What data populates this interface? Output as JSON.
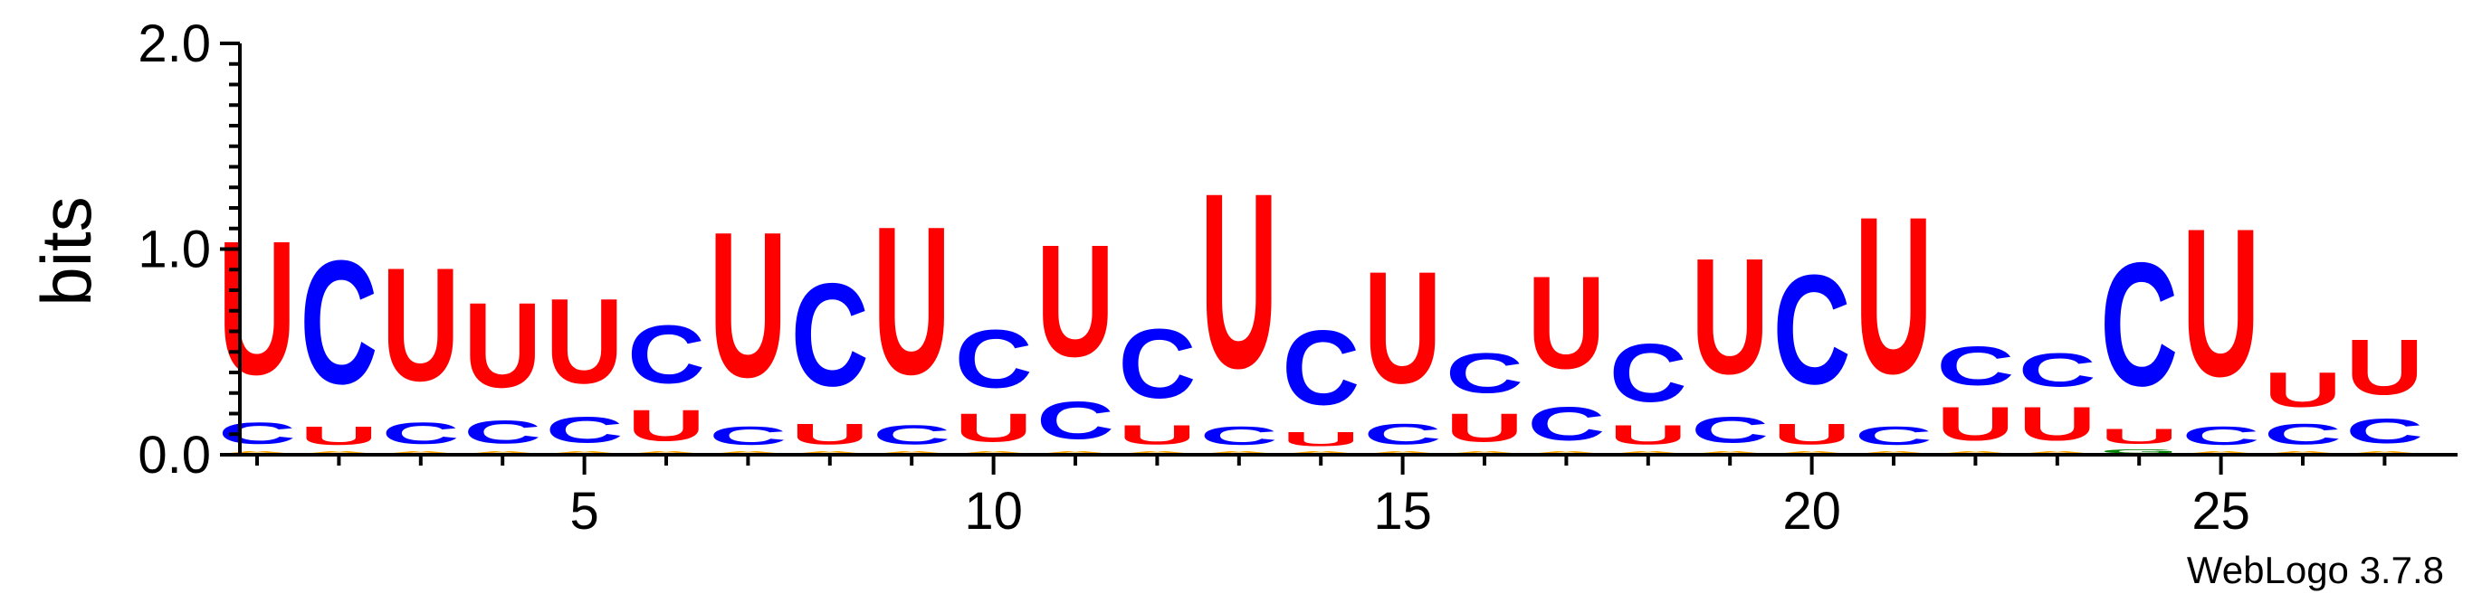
{
  "chart_data": {
    "type": "sequence_logo",
    "ylabel": "bits",
    "ylim": [
      0,
      2
    ],
    "y_ticks": [
      "0.0",
      "1.0",
      "2.0"
    ],
    "x_ticks": [
      5,
      10,
      15,
      20,
      25
    ],
    "xlim": [
      1,
      27
    ],
    "credit": "WebLogo 3.7.8",
    "colors": {
      "U": "#ff0000",
      "C": "#0000ff",
      "A": "#ffa500",
      "G": "#008000"
    },
    "positions": [
      {
        "pos": 1,
        "stack": [
          [
            "A",
            0.02
          ],
          [
            "C",
            0.17
          ],
          [
            "U",
            1.04
          ]
        ]
      },
      {
        "pos": 2,
        "stack": [
          [
            "A",
            0.02
          ],
          [
            "U",
            0.14
          ],
          [
            "C",
            0.96
          ]
        ]
      },
      {
        "pos": 3,
        "stack": [
          [
            "A",
            0.02
          ],
          [
            "C",
            0.17
          ],
          [
            "U",
            0.88
          ]
        ]
      },
      {
        "pos": 4,
        "stack": [
          [
            "A",
            0.02
          ],
          [
            "C",
            0.18
          ],
          [
            "U",
            0.66
          ]
        ]
      },
      {
        "pos": 5,
        "stack": [
          [
            "A",
            0.02
          ],
          [
            "C",
            0.2
          ],
          [
            "U",
            0.66
          ]
        ]
      },
      {
        "pos": 6,
        "stack": [
          [
            "A",
            0.02
          ],
          [
            "U",
            0.24
          ],
          [
            "C",
            0.45
          ]
        ]
      },
      {
        "pos": 7,
        "stack": [
          [
            "A",
            0.02
          ],
          [
            "C",
            0.14
          ],
          [
            "U",
            1.13
          ]
        ]
      },
      {
        "pos": 8,
        "stack": [
          [
            "A",
            0.02
          ],
          [
            "U",
            0.16
          ],
          [
            "C",
            0.8
          ]
        ]
      },
      {
        "pos": 9,
        "stack": [
          [
            "A",
            0.02
          ],
          [
            "C",
            0.15
          ],
          [
            "U",
            1.15
          ]
        ]
      },
      {
        "pos": 10,
        "stack": [
          [
            "A",
            0.02
          ],
          [
            "U",
            0.22
          ],
          [
            "C",
            0.45
          ]
        ]
      },
      {
        "pos": 11,
        "stack": [
          [
            "A",
            0.02
          ],
          [
            "C",
            0.29
          ],
          [
            "U",
            0.87
          ]
        ]
      },
      {
        "pos": 12,
        "stack": [
          [
            "A",
            0.02
          ],
          [
            "U",
            0.15
          ],
          [
            "C",
            0.54
          ]
        ]
      },
      {
        "pos": 13,
        "stack": [
          [
            "A",
            0.02
          ],
          [
            "C",
            0.14
          ],
          [
            "U",
            1.36
          ]
        ]
      },
      {
        "pos": 14,
        "stack": [
          [
            "A",
            0.02
          ],
          [
            "U",
            0.11
          ],
          [
            "C",
            0.58
          ]
        ]
      },
      {
        "pos": 15,
        "stack": [
          [
            "A",
            0.02
          ],
          [
            "C",
            0.16
          ],
          [
            "U",
            0.87
          ]
        ]
      },
      {
        "pos": 16,
        "stack": [
          [
            "A",
            0.02
          ],
          [
            "U",
            0.22
          ],
          [
            "C",
            0.31
          ]
        ]
      },
      {
        "pos": 17,
        "stack": [
          [
            "A",
            0.02
          ],
          [
            "C",
            0.26
          ],
          [
            "U",
            0.72
          ]
        ]
      },
      {
        "pos": 18,
        "stack": [
          [
            "A",
            0.02
          ],
          [
            "U",
            0.15
          ],
          [
            "C",
            0.45
          ]
        ]
      },
      {
        "pos": 19,
        "stack": [
          [
            "A",
            0.02
          ],
          [
            "C",
            0.2
          ],
          [
            "U",
            0.9
          ]
        ]
      },
      {
        "pos": 20,
        "stack": [
          [
            "A",
            0.02
          ],
          [
            "U",
            0.16
          ],
          [
            "C",
            0.85
          ]
        ]
      },
      {
        "pos": 21,
        "stack": [
          [
            "A",
            0.02
          ],
          [
            "C",
            0.14
          ],
          [
            "U",
            1.22
          ]
        ]
      },
      {
        "pos": 22,
        "stack": [
          [
            "A",
            0.02
          ],
          [
            "U",
            0.26
          ],
          [
            "C",
            0.3
          ]
        ]
      },
      {
        "pos": 23,
        "stack": [
          [
            "A",
            0.02
          ],
          [
            "U",
            0.26
          ],
          [
            "C",
            0.26
          ]
        ]
      },
      {
        "pos": 24,
        "stack": [
          [
            "G",
            0.03
          ],
          [
            "U",
            0.12
          ],
          [
            "C",
            0.96
          ]
        ]
      },
      {
        "pos": 25,
        "stack": [
          [
            "A",
            0.02
          ],
          [
            "C",
            0.14
          ],
          [
            "U",
            1.15
          ]
        ]
      },
      {
        "pos": 26,
        "stack": [
          [
            "A",
            0.02
          ],
          [
            "C",
            0.16
          ],
          [
            "U",
            0.27
          ]
        ]
      },
      {
        "pos": 27,
        "stack": [
          [
            "A",
            0.02
          ],
          [
            "C",
            0.19
          ],
          [
            "U",
            0.43
          ]
        ]
      }
    ]
  }
}
